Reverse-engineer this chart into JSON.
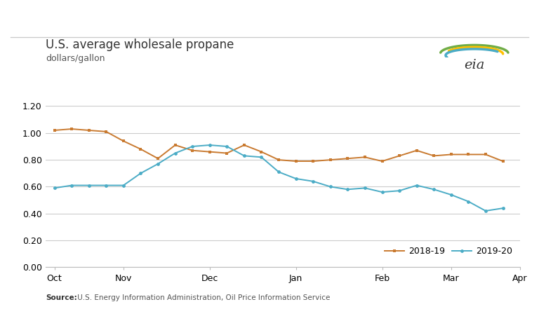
{
  "title": "U.S. average wholesale propane",
  "subtitle": "dollars/gallon",
  "source_bold": "Source:",
  "source_rest": " U.S. Energy Information Administration, Oil Price Information Service",
  "ylim": [
    0.0,
    1.3
  ],
  "yticks": [
    0.0,
    0.2,
    0.4,
    0.6,
    0.8,
    1.0,
    1.2
  ],
  "x_labels": [
    "Oct",
    "Nov",
    "Dec",
    "Jan",
    "Feb",
    "Mar",
    "Apr"
  ],
  "x_positions": [
    0,
    4,
    9,
    14,
    19,
    23,
    27
  ],
  "series_2018_19": {
    "label": "2018-19",
    "color": "#c97a30",
    "values": [
      1.02,
      1.03,
      1.02,
      1.01,
      0.94,
      0.88,
      0.81,
      0.91,
      0.87,
      0.86,
      0.85,
      0.91,
      0.86,
      0.8,
      0.79,
      0.79,
      0.8,
      0.81,
      0.82,
      0.79,
      0.83,
      0.87,
      0.83,
      0.84,
      0.84,
      0.84,
      0.79
    ]
  },
  "series_2019_20": {
    "label": "2019-20",
    "color": "#4bacc6",
    "values": [
      0.59,
      0.61,
      0.61,
      0.61,
      0.61,
      0.7,
      0.77,
      0.85,
      0.9,
      0.91,
      0.9,
      0.83,
      0.82,
      0.71,
      0.66,
      0.64,
      0.6,
      0.58,
      0.59,
      0.56,
      0.57,
      0.61,
      0.58,
      0.54,
      0.49,
      0.42,
      0.44
    ]
  },
  "background_color": "#ffffff",
  "grid_color": "#cccccc",
  "top_line_color": "#cccccc",
  "title_fontsize": 12,
  "subtitle_fontsize": 9,
  "source_fontsize": 7.5,
  "tick_fontsize": 9
}
